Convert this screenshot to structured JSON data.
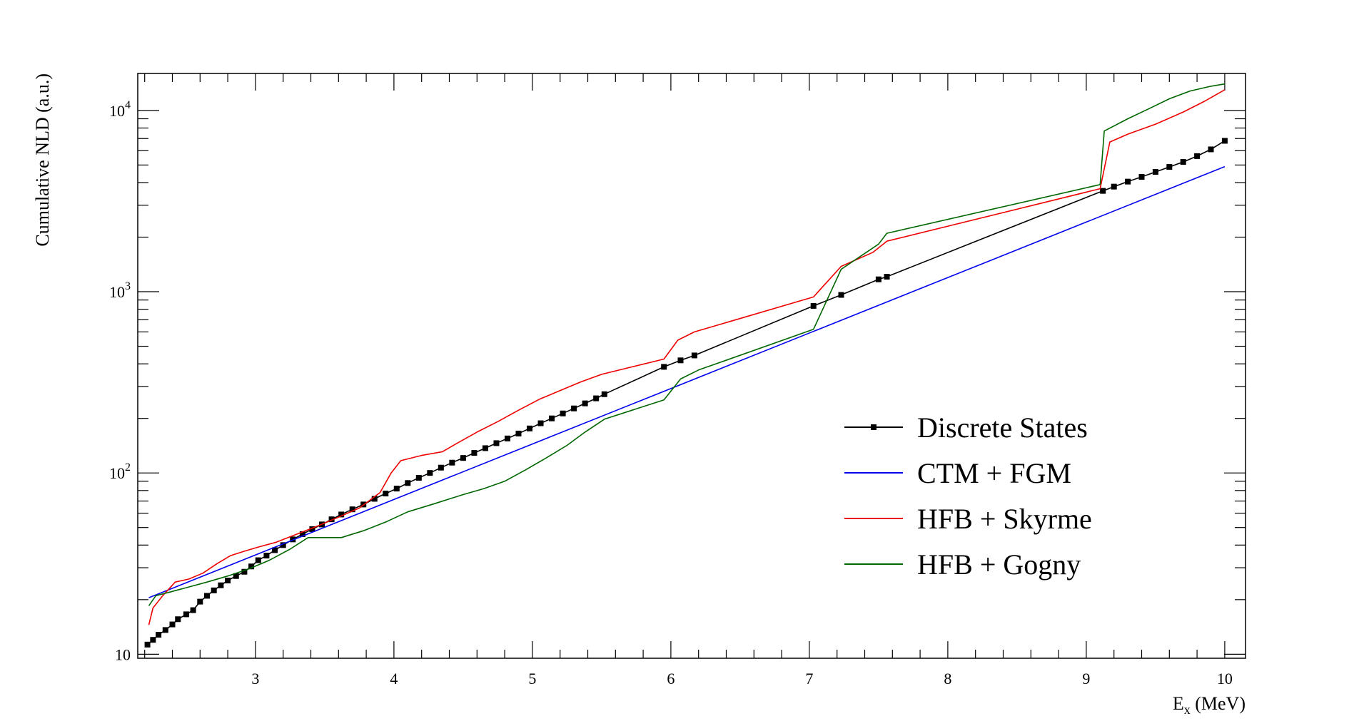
{
  "chart_data": {
    "type": "line",
    "title": "",
    "xlabel": "E",
    "xlabel_sub": "x",
    "xlabel_unit": " (MeV)",
    "ylabel": "Cumulative NLD (a.u.)",
    "xlim": [
      2.15,
      10.15
    ],
    "ylim": [
      9.5,
      16000
    ],
    "yscale": "log",
    "grid": false,
    "legend_position": "center-right",
    "x_ticks": [
      {
        "value": 3,
        "label": "3"
      },
      {
        "value": 4,
        "label": "4"
      },
      {
        "value": 5,
        "label": "5"
      },
      {
        "value": 6,
        "label": "6"
      },
      {
        "value": 7,
        "label": "7"
      },
      {
        "value": 8,
        "label": "8"
      },
      {
        "value": 9,
        "label": "9"
      },
      {
        "value": 10,
        "label": "10"
      }
    ],
    "y_ticks": [
      {
        "value": 10,
        "base": "10",
        "exp": ""
      },
      {
        "value": 100,
        "base": "10",
        "exp": "2"
      },
      {
        "value": 1000,
        "base": "10",
        "exp": "3"
      },
      {
        "value": 10000,
        "base": "10",
        "exp": "4"
      }
    ],
    "series": [
      {
        "name": "Discrete States",
        "color": "#000000",
        "markers": true,
        "points": [
          [
            2.22,
            11.3
          ],
          [
            2.26,
            12.0
          ],
          [
            2.3,
            12.8
          ],
          [
            2.35,
            13.6
          ],
          [
            2.4,
            14.6
          ],
          [
            2.44,
            15.6
          ],
          [
            2.5,
            16.6
          ],
          [
            2.55,
            17.5
          ],
          [
            2.6,
            19.5
          ],
          [
            2.65,
            21.0
          ],
          [
            2.7,
            22.5
          ],
          [
            2.75,
            24.0
          ],
          [
            2.8,
            25.5
          ],
          [
            2.86,
            27.0
          ],
          [
            2.92,
            28.5
          ],
          [
            2.97,
            30.5
          ],
          [
            3.02,
            33.0
          ],
          [
            3.08,
            35.0
          ],
          [
            3.14,
            37.5
          ],
          [
            3.2,
            40.0
          ],
          [
            3.27,
            43.0
          ],
          [
            3.34,
            46.0
          ],
          [
            3.41,
            49.0
          ],
          [
            3.48,
            52.0
          ],
          [
            3.55,
            55.5
          ],
          [
            3.62,
            59.0
          ],
          [
            3.7,
            63.0
          ],
          [
            3.78,
            67.0
          ],
          [
            3.86,
            72.0
          ],
          [
            3.94,
            77.0
          ],
          [
            4.02,
            82.0
          ],
          [
            4.1,
            88.0
          ],
          [
            4.18,
            94.0
          ],
          [
            4.26,
            100.0
          ],
          [
            4.34,
            107.0
          ],
          [
            4.42,
            114.0
          ],
          [
            4.5,
            121.0
          ],
          [
            4.58,
            129.0
          ],
          [
            4.66,
            137.0
          ],
          [
            4.74,
            146.0
          ],
          [
            4.82,
            155.0
          ],
          [
            4.9,
            165.0
          ],
          [
            4.98,
            176.0
          ],
          [
            5.06,
            188.0
          ],
          [
            5.14,
            200.0
          ],
          [
            5.22,
            213.0
          ],
          [
            5.3,
            227.0
          ],
          [
            5.38,
            242.0
          ],
          [
            5.46,
            258.0
          ],
          [
            5.52,
            272.0
          ],
          [
            5.95,
            385.0
          ],
          [
            6.07,
            418.0
          ],
          [
            6.17,
            445.0
          ],
          [
            7.03,
            835.0
          ],
          [
            7.23,
            960.0
          ],
          [
            7.5,
            1170.0
          ],
          [
            7.56,
            1210.0
          ],
          [
            9.12,
            3600.0
          ],
          [
            9.2,
            3800.0
          ],
          [
            9.3,
            4050.0
          ],
          [
            9.4,
            4300.0
          ],
          [
            9.5,
            4580.0
          ],
          [
            9.6,
            4880.0
          ],
          [
            9.7,
            5200.0
          ],
          [
            9.8,
            5600.0
          ],
          [
            9.9,
            6100.0
          ],
          [
            10.0,
            6800.0
          ]
        ]
      },
      {
        "name": "CTM + FGM",
        "color": "#0000ee",
        "markers": false,
        "points": [
          [
            2.23,
            20.5
          ],
          [
            10.0,
            4900.0
          ]
        ]
      },
      {
        "name": "HFB + Skyrme",
        "color": "#ee0000",
        "markers": false,
        "points": [
          [
            2.23,
            14.5
          ],
          [
            2.26,
            18.0
          ],
          [
            2.33,
            21.0
          ],
          [
            2.42,
            25.0
          ],
          [
            2.52,
            26.0
          ],
          [
            2.62,
            28.0
          ],
          [
            2.72,
            31.5
          ],
          [
            2.82,
            35.0
          ],
          [
            2.92,
            37.0
          ],
          [
            3.02,
            39.0
          ],
          [
            3.15,
            41.5
          ],
          [
            3.3,
            46.0
          ],
          [
            3.45,
            51.0
          ],
          [
            3.6,
            57.0
          ],
          [
            3.75,
            64.0
          ],
          [
            3.9,
            78.0
          ],
          [
            3.98,
            100.0
          ],
          [
            4.05,
            117.0
          ],
          [
            4.2,
            125.0
          ],
          [
            4.35,
            131.0
          ],
          [
            4.45,
            145.0
          ],
          [
            4.6,
            168.0
          ],
          [
            4.75,
            192.0
          ],
          [
            4.9,
            222.0
          ],
          [
            5.05,
            255.0
          ],
          [
            5.2,
            285.0
          ],
          [
            5.35,
            318.0
          ],
          [
            5.5,
            350.0
          ],
          [
            5.95,
            425.0
          ],
          [
            6.05,
            540.0
          ],
          [
            6.17,
            600.0
          ],
          [
            7.03,
            935.0
          ],
          [
            7.23,
            1380.0
          ],
          [
            7.46,
            1650.0
          ],
          [
            7.56,
            1900.0
          ],
          [
            9.1,
            3700.0
          ],
          [
            9.17,
            6700.0
          ],
          [
            9.3,
            7400.0
          ],
          [
            9.5,
            8400.0
          ],
          [
            9.7,
            9800.0
          ],
          [
            9.85,
            11200.0
          ],
          [
            10.0,
            13000.0
          ]
        ]
      },
      {
        "name": "HFB + Gogny",
        "color": "#006600",
        "markers": false,
        "points": [
          [
            2.23,
            18.5
          ],
          [
            2.28,
            21.0
          ],
          [
            2.38,
            22.0
          ],
          [
            2.52,
            23.5
          ],
          [
            2.65,
            25.0
          ],
          [
            2.8,
            27.0
          ],
          [
            2.95,
            29.5
          ],
          [
            3.1,
            33.0
          ],
          [
            3.25,
            38.0
          ],
          [
            3.38,
            44.0
          ],
          [
            3.62,
            44.0
          ],
          [
            3.78,
            48.0
          ],
          [
            3.95,
            54.0
          ],
          [
            4.1,
            61.0
          ],
          [
            4.3,
            68.0
          ],
          [
            4.5,
            76.0
          ],
          [
            4.65,
            82.0
          ],
          [
            4.8,
            90.0
          ],
          [
            4.95,
            104.0
          ],
          [
            5.1,
            121.0
          ],
          [
            5.25,
            142.0
          ],
          [
            5.38,
            168.0
          ],
          [
            5.52,
            198.0
          ],
          [
            5.95,
            253.0
          ],
          [
            6.07,
            330.0
          ],
          [
            6.2,
            370.0
          ],
          [
            7.03,
            620.0
          ],
          [
            7.23,
            1330.0
          ],
          [
            7.5,
            1830.0
          ],
          [
            7.56,
            2100.0
          ],
          [
            9.1,
            3900.0
          ],
          [
            9.13,
            7700.0
          ],
          [
            9.3,
            9000.0
          ],
          [
            9.45,
            10200.0
          ],
          [
            9.6,
            11600.0
          ],
          [
            9.75,
            12800.0
          ],
          [
            9.9,
            13600.0
          ],
          [
            10.0,
            14000.0
          ]
        ]
      }
    ]
  }
}
